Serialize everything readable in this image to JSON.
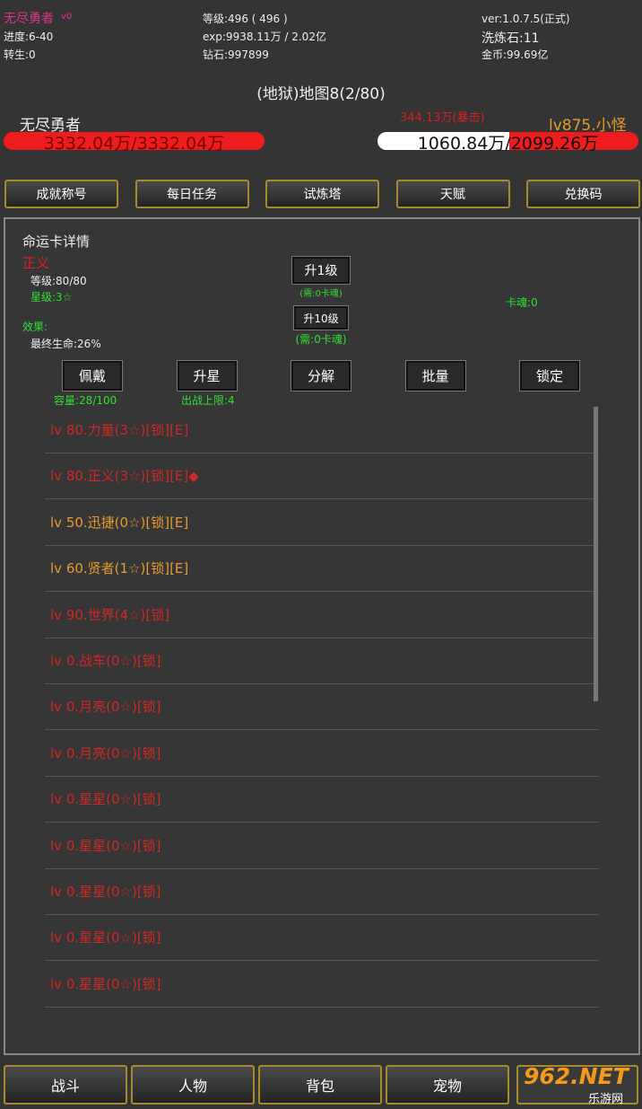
{
  "header": {
    "name": "无尽勇者",
    "vip": "v0",
    "progress": "进度:6-40",
    "rebirth": "转生:0",
    "level": "等级:496 ( 496 )",
    "exp": "exp:9938.11万 / 2.02亿",
    "diamond": "钻石:997899",
    "version": "ver:1.0.7.5(正式)",
    "wash_stone": "洗炼石:11",
    "gold": "金币:99.69亿"
  },
  "battle": {
    "map": "(地狱)地图8(2/80)",
    "player_name": "无尽勇者",
    "player_hp": "3332.04万/3332.04万",
    "damage": "344.13万(暴击)",
    "enemy_name": "lv875.小怪",
    "enemy_hp": "1060.84万/2099.26万"
  },
  "menu": [
    "成就称号",
    "每日任务",
    "试炼塔",
    "天赋",
    "兑换码"
  ],
  "panel": {
    "title": "命运卡详情",
    "card_name": "正义",
    "card_level": "等级:80/80",
    "card_star": "星级:3☆",
    "effect_label": "效果:",
    "effect": "最终生命:26%",
    "up1": "升1级",
    "up1_cost": "(需:0卡魂)",
    "up10": "升10级",
    "up10_cost": "(需:0卡魂)",
    "soul": "卡魂:0",
    "actions": [
      "佩戴",
      "升星",
      "分解",
      "批量",
      "锁定"
    ],
    "capacity": "容量:28/100",
    "battle_limit": "出战上限:4"
  },
  "cards": [
    {
      "label": "lv 80.力量(3☆)[锁][E]",
      "color": "#cf2a24"
    },
    {
      "label": "lv 80.正义(3☆)[锁][E]◆",
      "color": "#cf2a24"
    },
    {
      "label": "lv 50.迅捷(0☆)[锁][E]",
      "color": "#e39b2e"
    },
    {
      "label": "lv 60.贤者(1☆)[锁][E]",
      "color": "#e39b2e"
    },
    {
      "label": "lv 90.世界(4☆)[锁]",
      "color": "#cf2a24"
    },
    {
      "label": "lv 0.战车(0☆)[锁]",
      "color": "#cf2a24"
    },
    {
      "label": "lv 0.月亮(0☆)[锁]",
      "color": "#cf2a24"
    },
    {
      "label": "lv 0.月亮(0☆)[锁]",
      "color": "#cf2a24"
    },
    {
      "label": "lv 0.星星(0☆)[锁]",
      "color": "#cf2a24"
    },
    {
      "label": "lv 0.星星(0☆)[锁]",
      "color": "#cf2a24"
    },
    {
      "label": "lv 0.星星(0☆)[锁]",
      "color": "#cf2a24"
    },
    {
      "label": "lv 0.星星(0☆)[锁]",
      "color": "#cf2a24"
    },
    {
      "label": "lv 0.星星(0☆)[锁]",
      "color": "#cf2a24"
    }
  ],
  "tabs": [
    "战斗",
    "人物",
    "背包",
    "宠物"
  ],
  "watermark": {
    "brand": "962.NET",
    "site": "乐游网"
  }
}
